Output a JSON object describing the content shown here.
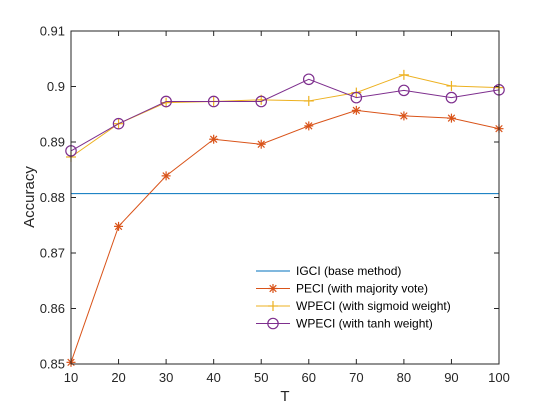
{
  "chart_data": {
    "type": "line",
    "title": "",
    "xlabel": "T",
    "ylabel": "Accuracy",
    "xlim": [
      10,
      100
    ],
    "ylim": [
      0.85,
      0.91
    ],
    "x_ticks": [
      10,
      20,
      30,
      40,
      50,
      60,
      70,
      80,
      90,
      100
    ],
    "y_ticks": [
      0.85,
      0.86,
      0.87,
      0.88,
      0.89,
      0.9,
      0.91
    ],
    "y_tick_labels": [
      "0.85",
      "0.86",
      "0.87",
      "0.88",
      "0.89",
      "0.9",
      "0.91"
    ],
    "grid": false,
    "legend_position": "bottom-right",
    "x": [
      10,
      20,
      30,
      40,
      50,
      60,
      70,
      80,
      90,
      100
    ],
    "series": [
      {
        "name": "IGCI (base method)",
        "marker": "none",
        "color": "#0072BD",
        "values": [
          0.8807,
          0.8807,
          0.8807,
          0.8807,
          0.8807,
          0.8807,
          0.8807,
          0.8807,
          0.8807,
          0.8807
        ]
      },
      {
        "name": "PECI (with majority vote)",
        "marker": "asterisk",
        "color": "#D95319",
        "values": [
          0.8503,
          0.8748,
          0.8839,
          0.8905,
          0.8896,
          0.8929,
          0.8957,
          0.8947,
          0.8943,
          0.8924
        ]
      },
      {
        "name": "WPECI (with sigmoid weight)",
        "marker": "plus",
        "color": "#EDB120",
        "values": [
          0.8873,
          0.8933,
          0.8971,
          0.8973,
          0.8976,
          0.8974,
          0.8989,
          0.9021,
          0.9001,
          0.8998
        ]
      },
      {
        "name": "WPECI (with tanh weight)",
        "marker": "circle",
        "color": "#7E2F8E",
        "values": [
          0.8884,
          0.8933,
          0.8973,
          0.8973,
          0.8973,
          0.9013,
          0.898,
          0.8993,
          0.898,
          0.8994
        ]
      }
    ]
  }
}
